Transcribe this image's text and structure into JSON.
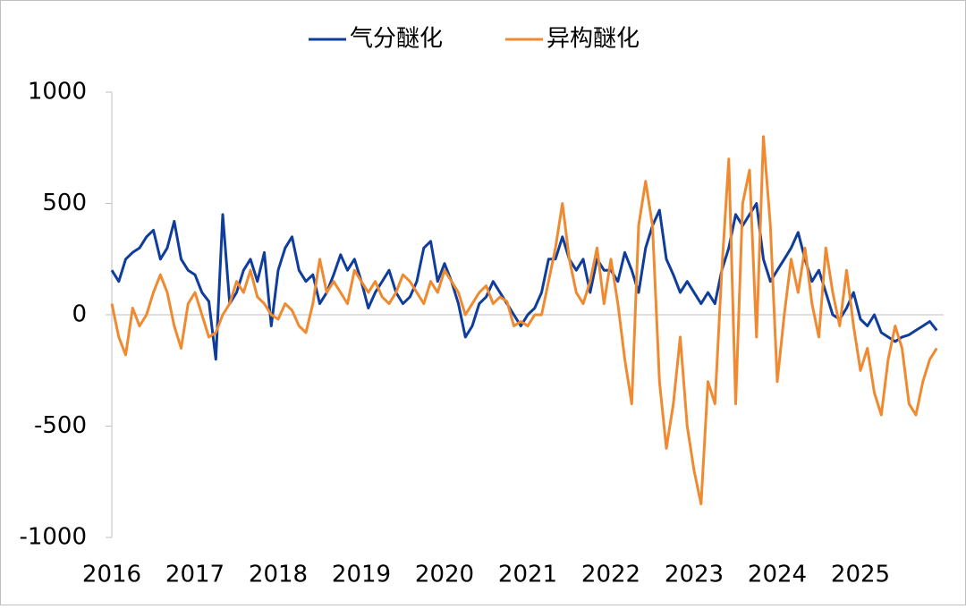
{
  "chart_data": {
    "type": "line",
    "categories": [
      "2016",
      null,
      null,
      null,
      null,
      null,
      null,
      null,
      null,
      null,
      null,
      null,
      "2017",
      null,
      null,
      null,
      null,
      null,
      null,
      null,
      null,
      null,
      null,
      null,
      "2018",
      null,
      null,
      null,
      null,
      null,
      null,
      null,
      null,
      null,
      null,
      null,
      "2019",
      null,
      null,
      null,
      null,
      null,
      null,
      null,
      null,
      null,
      null,
      null,
      "2020",
      null,
      null,
      null,
      null,
      null,
      null,
      null,
      null,
      null,
      null,
      null,
      "2021",
      null,
      null,
      null,
      null,
      null,
      null,
      null,
      null,
      null,
      null,
      null,
      "2022",
      null,
      null,
      null,
      null,
      null,
      null,
      null,
      null,
      null,
      null,
      null,
      "2023",
      null,
      null,
      null,
      null,
      null,
      null,
      null,
      null,
      null,
      null,
      null,
      "2024",
      null,
      null,
      null,
      null,
      null,
      null,
      null,
      null,
      null,
      null,
      null,
      "2025",
      null,
      null,
      null,
      null,
      null,
      null,
      null,
      null,
      null,
      null,
      null
    ],
    "series": [
      {
        "name": "气分醚化",
        "color": "#0f3d9c",
        "values": [
          200,
          150,
          250,
          280,
          300,
          350,
          380,
          250,
          300,
          420,
          250,
          200,
          180,
          100,
          60,
          -200,
          450,
          50,
          100,
          200,
          250,
          150,
          280,
          -50,
          200,
          300,
          350,
          200,
          150,
          180,
          50,
          100,
          180,
          270,
          200,
          250,
          150,
          30,
          100,
          150,
          200,
          100,
          50,
          80,
          150,
          300,
          330,
          150,
          230,
          150,
          50,
          -100,
          -50,
          50,
          80,
          150,
          100,
          50,
          0,
          -50,
          0,
          30,
          100,
          250,
          250,
          350,
          250,
          200,
          250,
          100,
          250,
          200,
          200,
          150,
          280,
          200,
          100,
          300,
          400,
          470,
          250,
          180,
          100,
          150,
          100,
          50,
          100,
          50,
          200,
          300,
          450,
          400,
          450,
          500,
          250,
          150,
          200,
          250,
          300,
          370,
          250,
          150,
          200,
          100,
          0,
          -20,
          30,
          100,
          -20,
          -50,
          0,
          -80,
          -100,
          -120,
          -100,
          -90,
          -70,
          -50,
          -30,
          -70
        ]
      },
      {
        "name": "异构醚化",
        "color": "#f08a30",
        "values": [
          50,
          -100,
          -180,
          30,
          -50,
          0,
          100,
          180,
          100,
          -50,
          -150,
          50,
          100,
          0,
          -100,
          -80,
          0,
          50,
          150,
          100,
          200,
          80,
          50,
          0,
          -20,
          50,
          20,
          -50,
          -80,
          50,
          250,
          100,
          150,
          100,
          50,
          200,
          150,
          100,
          150,
          80,
          50,
          100,
          180,
          150,
          100,
          50,
          150,
          100,
          200,
          150,
          100,
          0,
          50,
          100,
          130,
          50,
          80,
          60,
          -50,
          -30,
          -50,
          0,
          0,
          150,
          300,
          500,
          250,
          100,
          50,
          150,
          300,
          50,
          250,
          50,
          -200,
          -400,
          400,
          600,
          400,
          -300,
          -600,
          -400,
          -100,
          -500,
          -700,
          -850,
          -300,
          -400,
          200,
          700,
          -400,
          500,
          650,
          -100,
          800,
          400,
          -300,
          0,
          250,
          100,
          300,
          50,
          -100,
          300,
          100,
          -50,
          200,
          -50,
          -250,
          -150,
          -350,
          -450,
          -200,
          -50,
          -150,
          -400,
          -450,
          -300,
          -200,
          -150
        ]
      }
    ],
    "ylim": [
      -1000,
      1000
    ],
    "yticks": [
      1000,
      500,
      0,
      -500,
      -1000
    ],
    "legend": "top"
  }
}
